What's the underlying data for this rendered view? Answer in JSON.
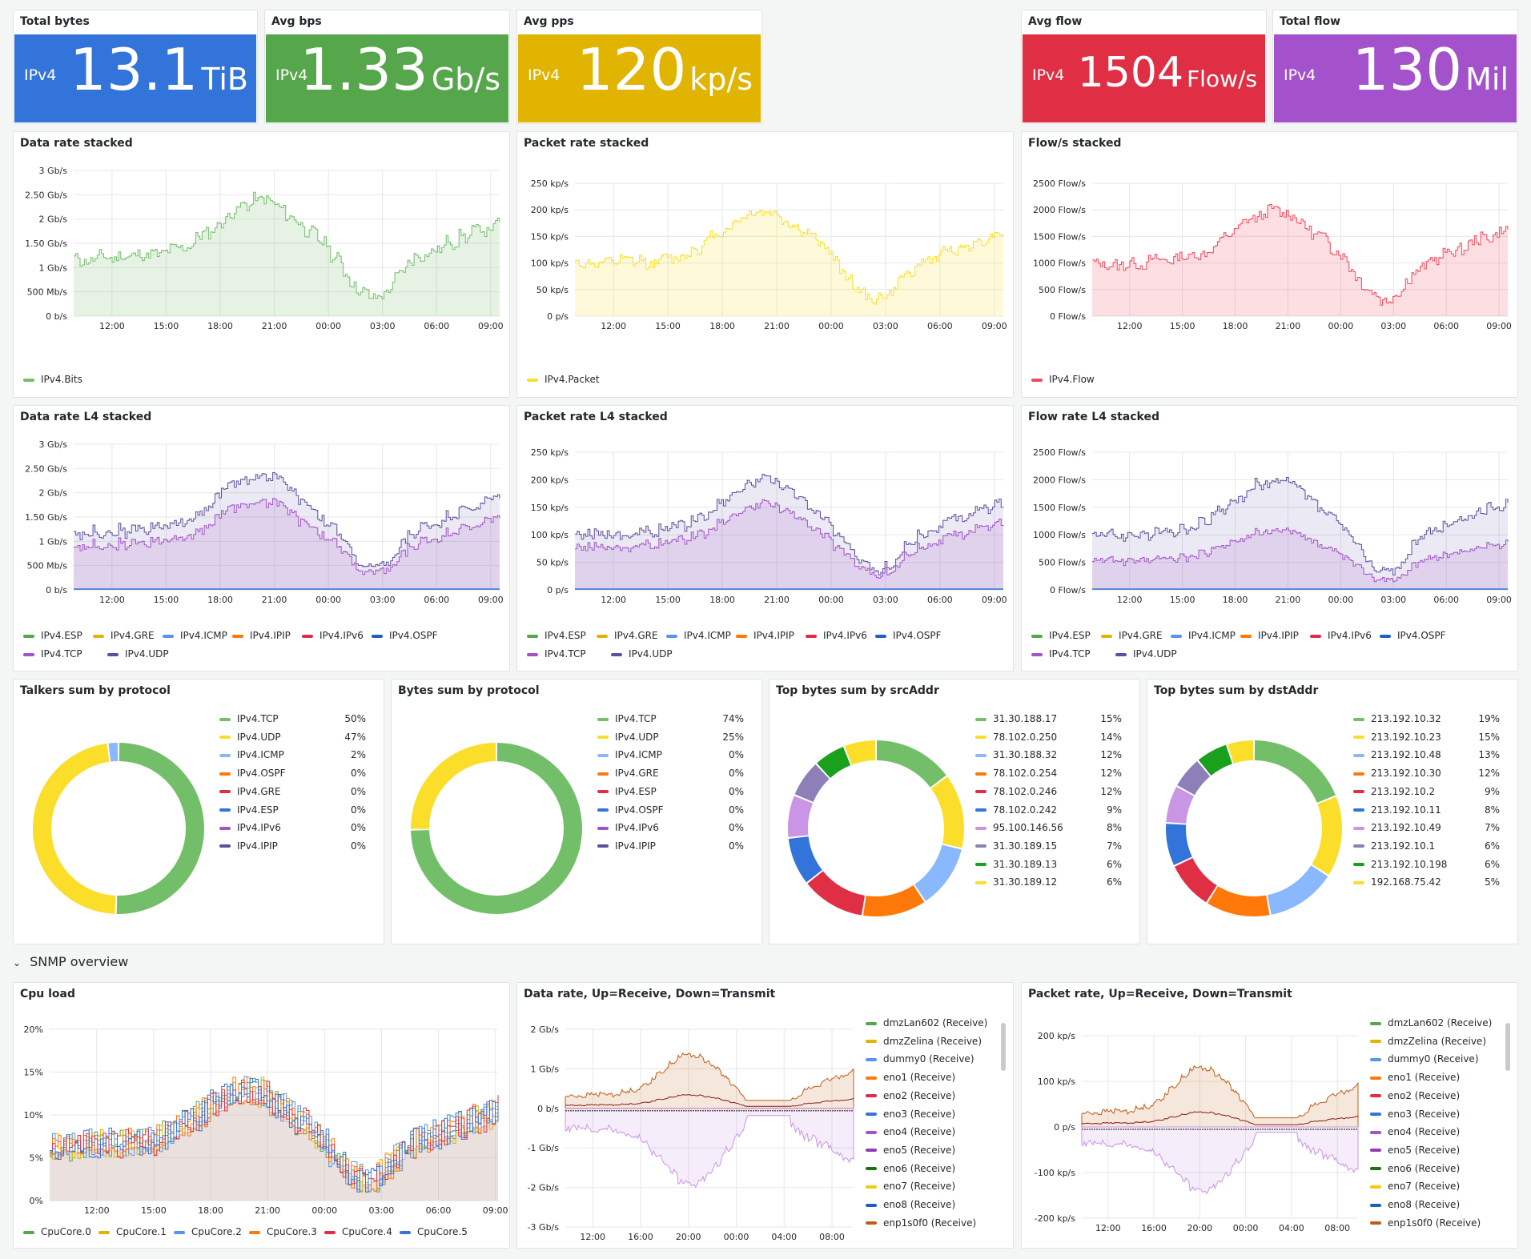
{
  "stats": [
    {
      "title": "Total bytes",
      "label": "IPv4",
      "value": "13.1",
      "unit": "TiB",
      "color": "#3274d9"
    },
    {
      "title": "Avg bps",
      "label": "IPv4",
      "value": "1.33",
      "unit": "Gb/s",
      "color": "#56a64b"
    },
    {
      "title": "Avg pps",
      "label": "IPv4",
      "value": "120",
      "unit": "kp/s",
      "color": "#e0b400"
    },
    {
      "title": "Avg flow",
      "label": "IPv4",
      "value": "1504",
      "unit": "Flow/s",
      "color": "#e02f44"
    },
    {
      "title": "Total flow",
      "label": "IPv4",
      "value": "130",
      "unit": "Mil",
      "color": "#a352cc"
    }
  ],
  "x_ticks_day": [
    "12:00",
    "15:00",
    "18:00",
    "21:00",
    "00:00",
    "03:00",
    "06:00",
    "09:00"
  ],
  "x_ticks_snmp": [
    "12:00",
    "16:00",
    "20:00",
    "00:00",
    "04:00",
    "08:00"
  ],
  "charts": [
    {
      "title": "Data rate stacked",
      "y_ticks": [
        "3 Gb/s",
        "2.50 Gb/s",
        "2 Gb/s",
        "1.50 Gb/s",
        "1 Gb/s",
        "500 Mb/s",
        "0 b/s"
      ],
      "legend": [
        {
          "name": "IPv4.Bits",
          "color": "#73bf69"
        }
      ]
    },
    {
      "title": "Packet rate stacked",
      "y_ticks": [
        "250 kp/s",
        "200 kp/s",
        "150 kp/s",
        "100 kp/s",
        "50 kp/s",
        "0 p/s"
      ],
      "legend": [
        {
          "name": "IPv4.Packet",
          "color": "#fade2a"
        }
      ]
    },
    {
      "title": "Flow/s stacked",
      "y_ticks": [
        "2500 Flow/s",
        "2000 Flow/s",
        "1500 Flow/s",
        "1000 Flow/s",
        "500 Flow/s",
        "0 Flow/s"
      ],
      "legend": [
        {
          "name": "IPv4.Flow",
          "color": "#f2495c"
        }
      ]
    },
    {
      "title": "Data rate L4 stacked",
      "y_ticks": [
        "3 Gb/s",
        "2.50 Gb/s",
        "2 Gb/s",
        "1.50 Gb/s",
        "1 Gb/s",
        "500 Mb/s",
        "0 b/s"
      ]
    },
    {
      "title": "Packet rate L4 stacked",
      "y_ticks": [
        "250 kp/s",
        "200 kp/s",
        "150 kp/s",
        "100 kp/s",
        "50 kp/s",
        "0 p/s"
      ]
    },
    {
      "title": "Flow rate L4 stacked",
      "y_ticks": [
        "2500 Flow/s",
        "2000 Flow/s",
        "1500 Flow/s",
        "1000 Flow/s",
        "500 Flow/s",
        "0 Flow/s"
      ]
    }
  ],
  "l4_legend": [
    {
      "name": "IPv4.ESP",
      "color": "#56a64b"
    },
    {
      "name": "IPv4.GRE",
      "color": "#e0b400"
    },
    {
      "name": "IPv4.ICMP",
      "color": "#5794f2"
    },
    {
      "name": "IPv4.IPIP",
      "color": "#ff780a"
    },
    {
      "name": "IPv4.IPv6",
      "color": "#e02f44"
    },
    {
      "name": "IPv4.OSPF",
      "color": "#1f60c4"
    },
    {
      "name": "IPv4.TCP",
      "color": "#a352cc"
    },
    {
      "name": "IPv4.UDP",
      "color": "#5e4e9e"
    }
  ],
  "pies": [
    {
      "title": "Talkers sum by protocol",
      "items": [
        {
          "name": "IPv4.TCP",
          "pct": "50%",
          "value": 50,
          "color": "#73bf69"
        },
        {
          "name": "IPv4.UDP",
          "pct": "47%",
          "value": 47,
          "color": "#fade2a"
        },
        {
          "name": "IPv4.ICMP",
          "pct": "2%",
          "value": 2,
          "color": "#8ab8ff"
        },
        {
          "name": "IPv4.OSPF",
          "pct": "0%",
          "value": 0,
          "color": "#ff780a"
        },
        {
          "name": "IPv4.GRE",
          "pct": "0%",
          "value": 0,
          "color": "#e02f44"
        },
        {
          "name": "IPv4.ESP",
          "pct": "0%",
          "value": 0,
          "color": "#3274d9"
        },
        {
          "name": "IPv4.IPv6",
          "pct": "0%",
          "value": 0,
          "color": "#a352cc"
        },
        {
          "name": "IPv4.IPIP",
          "pct": "0%",
          "value": 0,
          "color": "#5e4e9e"
        }
      ]
    },
    {
      "title": "Bytes sum by protocol",
      "items": [
        {
          "name": "IPv4.TCP",
          "pct": "74%",
          "value": 74,
          "color": "#73bf69"
        },
        {
          "name": "IPv4.UDP",
          "pct": "25%",
          "value": 25,
          "color": "#fade2a"
        },
        {
          "name": "IPv4.ICMP",
          "pct": "0%",
          "value": 0,
          "color": "#8ab8ff"
        },
        {
          "name": "IPv4.GRE",
          "pct": "0%",
          "value": 0,
          "color": "#ff780a"
        },
        {
          "name": "IPv4.ESP",
          "pct": "0%",
          "value": 0,
          "color": "#e02f44"
        },
        {
          "name": "IPv4.OSPF",
          "pct": "0%",
          "value": 0,
          "color": "#3274d9"
        },
        {
          "name": "IPv4.IPv6",
          "pct": "0%",
          "value": 0,
          "color": "#a352cc"
        },
        {
          "name": "IPv4.IPIP",
          "pct": "0%",
          "value": 0,
          "color": "#5e4e9e"
        }
      ]
    },
    {
      "title": "Top bytes sum by srcAddr",
      "items": [
        {
          "name": "31.30.188.17",
          "pct": "15%",
          "value": 15,
          "color": "#73bf69"
        },
        {
          "name": "78.102.0.250",
          "pct": "14%",
          "value": 14,
          "color": "#fade2a"
        },
        {
          "name": "31.30.188.32",
          "pct": "12%",
          "value": 12,
          "color": "#8ab8ff"
        },
        {
          "name": "78.102.0.254",
          "pct": "12%",
          "value": 12,
          "color": "#ff780a"
        },
        {
          "name": "78.102.0.246",
          "pct": "12%",
          "value": 12,
          "color": "#e02f44"
        },
        {
          "name": "78.102.0.242",
          "pct": "9%",
          "value": 9,
          "color": "#3274d9"
        },
        {
          "name": "95.100.146.56",
          "pct": "8%",
          "value": 8,
          "color": "#ca95e5"
        },
        {
          "name": "31.30.189.15",
          "pct": "7%",
          "value": 7,
          "color": "#8f7fb8"
        },
        {
          "name": "31.30.189.13",
          "pct": "6%",
          "value": 6,
          "color": "#19a01c"
        },
        {
          "name": "31.30.189.12",
          "pct": "6%",
          "value": 6,
          "color": "#fade2a"
        }
      ]
    },
    {
      "title": "Top bytes sum by dstAddr",
      "items": [
        {
          "name": "213.192.10.32",
          "pct": "19%",
          "value": 19,
          "color": "#73bf69"
        },
        {
          "name": "213.192.10.23",
          "pct": "15%",
          "value": 15,
          "color": "#fade2a"
        },
        {
          "name": "213.192.10.48",
          "pct": "13%",
          "value": 13,
          "color": "#8ab8ff"
        },
        {
          "name": "213.192.10.30",
          "pct": "12%",
          "value": 12,
          "color": "#ff780a"
        },
        {
          "name": "213.192.10.2",
          "pct": "9%",
          "value": 9,
          "color": "#e02f44"
        },
        {
          "name": "213.192.10.11",
          "pct": "8%",
          "value": 8,
          "color": "#3274d9"
        },
        {
          "name": "213.192.10.49",
          "pct": "7%",
          "value": 7,
          "color": "#ca95e5"
        },
        {
          "name": "213.192.10.1",
          "pct": "6%",
          "value": 6,
          "color": "#8f7fb8"
        },
        {
          "name": "213.192.10.198",
          "pct": "6%",
          "value": 6,
          "color": "#19a01c"
        },
        {
          "name": "192.168.75.42",
          "pct": "5%",
          "value": 5,
          "color": "#fade2a"
        }
      ]
    }
  ],
  "section": {
    "title": "SNMP overview"
  },
  "cpu": {
    "title": "Cpu load",
    "y_ticks": [
      "20%",
      "15%",
      "10%",
      "5%",
      "0%"
    ],
    "legend": [
      {
        "name": "CpuCore.0",
        "color": "#56a64b"
      },
      {
        "name": "CpuCore.1",
        "color": "#e0b400"
      },
      {
        "name": "CpuCore.2",
        "color": "#5794f2"
      },
      {
        "name": "CpuCore.3",
        "color": "#ff780a"
      },
      {
        "name": "CpuCore.4",
        "color": "#e02f44"
      },
      {
        "name": "CpuCore.5",
        "color": "#3274d9"
      }
    ]
  },
  "snmp_data": {
    "title": "Data rate, Up=Receive, Down=Transmit",
    "y_ticks": [
      "2 Gb/s",
      "1 Gb/s",
      "0 b/s",
      "-1 Gb/s",
      "-2 Gb/s",
      "-3 Gb/s"
    ]
  },
  "snmp_packet": {
    "title": "Packet rate, Up=Receive, Down=Transmit",
    "y_ticks": [
      "200 kp/s",
      "100 kp/s",
      "0 p/s",
      "-100 kp/s",
      "-200 kp/s"
    ]
  },
  "iface_legend": [
    {
      "name": "dmzLan602 (Receive)",
      "color": "#56a64b"
    },
    {
      "name": "dmzZelina (Receive)",
      "color": "#e0b400"
    },
    {
      "name": "dummy0 (Receive)",
      "color": "#5794f2"
    },
    {
      "name": "eno1 (Receive)",
      "color": "#ff780a"
    },
    {
      "name": "eno2 (Receive)",
      "color": "#e02f44"
    },
    {
      "name": "eno3 (Receive)",
      "color": "#3274d9"
    },
    {
      "name": "eno4 (Receive)",
      "color": "#a352cc"
    },
    {
      "name": "eno5 (Receive)",
      "color": "#8f3bb8"
    },
    {
      "name": "eno6 (Receive)",
      "color": "#19730e"
    },
    {
      "name": "eno7 (Receive)",
      "color": "#f2cc0c"
    },
    {
      "name": "eno8 (Receive)",
      "color": "#1f60c4"
    },
    {
      "name": "enp1s0f0 (Receive)",
      "color": "#c15c17"
    }
  ]
}
